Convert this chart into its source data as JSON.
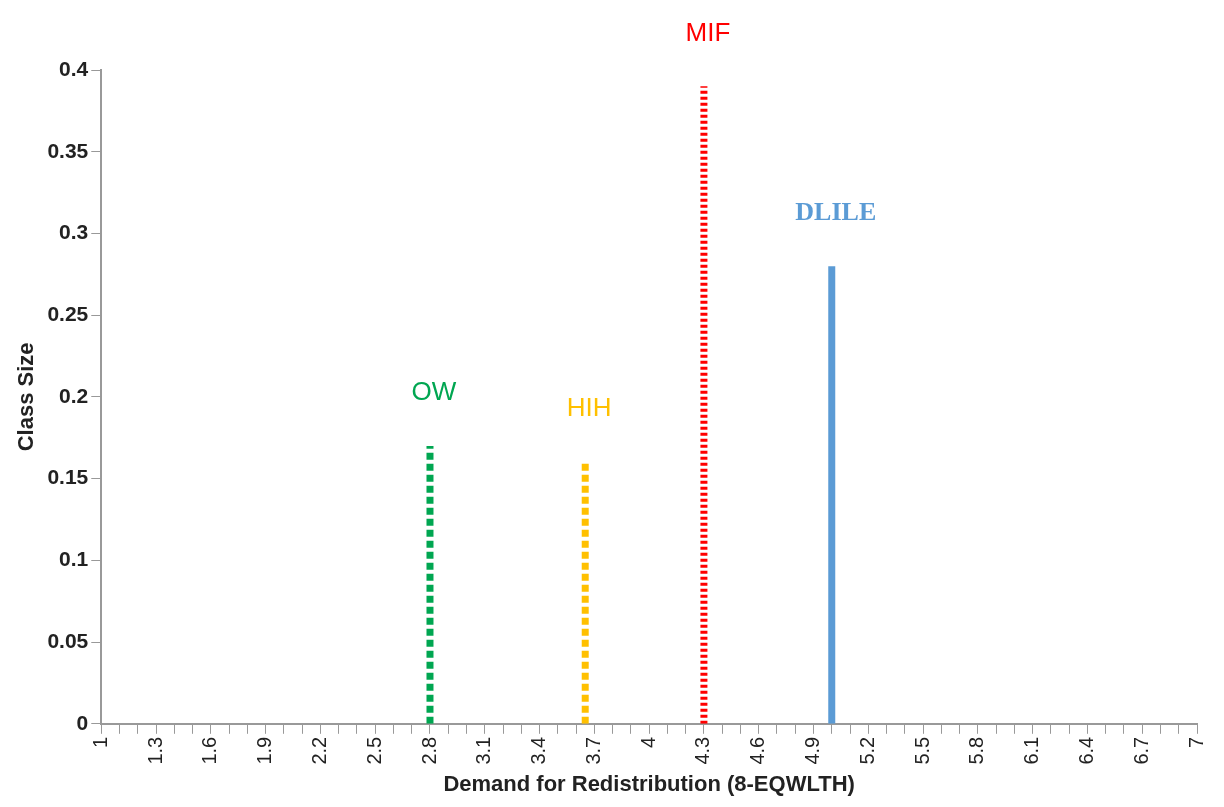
{
  "chart_data": {
    "type": "line",
    "xlabel": "Demand for Redistribution (8-EQWLTH)",
    "ylabel": "Class Size",
    "xlim": [
      1,
      7
    ],
    "xticks": [
      1,
      {
        "value": 1.1,
        "label": null
      },
      {
        "value": 1.2,
        "label": null
      },
      1.3,
      {
        "value": 1.4,
        "label": null
      },
      {
        "value": 1.5,
        "label": null
      },
      1.6,
      {
        "value": 1.7,
        "label": null
      },
      {
        "value": 1.8,
        "label": null
      },
      1.9,
      {
        "value": 2,
        "label": null
      },
      {
        "value": 2.1,
        "label": null
      },
      2.2,
      {
        "value": 2.3,
        "label": null
      },
      {
        "value": 2.4,
        "label": null
      },
      2.5,
      {
        "value": 2.6,
        "label": null
      },
      {
        "value": 2.7,
        "label": null
      },
      2.8,
      {
        "value": 2.9,
        "label": null
      },
      {
        "value": 3,
        "label": null
      },
      3.1,
      {
        "value": 3.2,
        "label": null
      },
      {
        "value": 3.3,
        "label": null
      },
      3.4,
      {
        "value": 3.5,
        "label": null
      },
      {
        "value": 3.6,
        "label": null
      },
      3.7,
      {
        "value": 3.8,
        "label": null
      },
      {
        "value": 3.9,
        "label": null
      },
      4,
      {
        "value": 4.1,
        "label": null
      },
      {
        "value": 4.2,
        "label": null
      },
      4.3,
      {
        "value": 4.4,
        "label": null
      },
      {
        "value": 4.5,
        "label": null
      },
      4.6,
      {
        "value": 4.7,
        "label": null
      },
      {
        "value": 4.8,
        "label": null
      },
      4.9,
      {
        "value": 5,
        "label": null
      },
      {
        "value": 5.1,
        "label": null
      },
      5.2,
      {
        "value": 5.3,
        "label": null
      },
      {
        "value": 5.4,
        "label": null
      },
      5.5,
      {
        "value": 5.6,
        "label": null
      },
      {
        "value": 5.7,
        "label": null
      },
      5.8,
      {
        "value": 5.9,
        "label": null
      },
      {
        "value": 6,
        "label": null
      },
      6.1,
      {
        "value": 6.2,
        "label": null
      },
      {
        "value": 6.3,
        "label": null
      },
      6.4,
      {
        "value": 6.5,
        "label": null
      },
      {
        "value": 6.6,
        "label": null
      },
      6.7,
      {
        "value": 6.8,
        "label": null
      },
      {
        "value": 6.9,
        "label": null
      },
      7
    ],
    "ylim": [
      0,
      0.4
    ],
    "yticks": [
      0,
      0.05,
      0.1,
      0.15,
      0.2,
      0.25,
      0.3,
      0.35,
      0.4
    ],
    "grid": false,
    "legend": false,
    "marker": "none",
    "series": [
      {
        "name": "OW",
        "color": "#00a651",
        "x": [
          2.8,
          2.8
        ],
        "values": [
          0,
          0.17
        ],
        "line_style": "dashed"
      },
      {
        "name": "HIH",
        "color": "#ffc000",
        "x": [
          3.65,
          3.65
        ],
        "values": [
          0,
          0.16
        ],
        "line_style": "dashed"
      },
      {
        "name": "MIF",
        "color": "#ff0000",
        "x": [
          4.3,
          4.3
        ],
        "values": [
          0,
          0.39
        ],
        "line_style": "dotted"
      },
      {
        "name": "DLILE",
        "color": "#5b9bd5",
        "x": [
          5,
          5
        ],
        "values": [
          0,
          0.28
        ],
        "line_style": "solid"
      }
    ]
  }
}
